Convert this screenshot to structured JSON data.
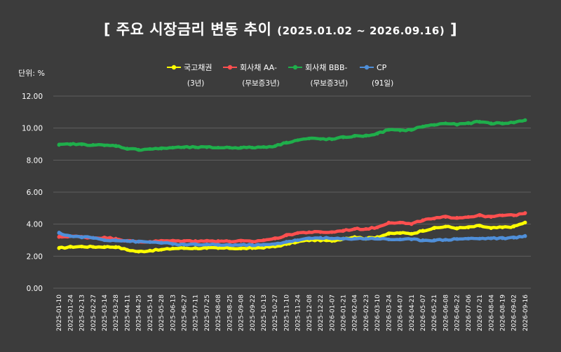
{
  "chart_data": {
    "type": "line",
    "title": "주요 시장금리 변동 추이",
    "title_range": "(2025.01.02 ~ 2026.09.16)",
    "title_open_bracket": "[",
    "title_close_bracket": "]",
    "ylabel": "단위: %",
    "ylim": [
      0,
      12
    ],
    "yticks": [
      "0.00",
      "2.00",
      "4.00",
      "6.00",
      "8.00",
      "10.00",
      "12.00"
    ],
    "grid": true,
    "legend_position": "top",
    "x_tick_labels": [
      "2025-01-10",
      "2025-01-24",
      "2025-02-13",
      "2025-02-27",
      "2025-03-14",
      "2025-03-28",
      "2025-04-11",
      "2025-04-25",
      "2025-05-14",
      "2025-05-28",
      "2025-06-13",
      "2025-06-27",
      "2025-07-11",
      "2025-07-25",
      "2025-08-08",
      "2025-08-25",
      "2025-09-08",
      "2025-09-22",
      "2025-10-13",
      "2025-10-27",
      "2025-11-10",
      "2025-11-24",
      "2025-12-08",
      "2025-12-22",
      "2026-01-07",
      "2026-01-21",
      "2026-02-04",
      "2026-02-23",
      "2026-03-10",
      "2026-03-24",
      "2026-04-07",
      "2026-04-21",
      "2026-05-07",
      "2026-05-21",
      "2026-06-08",
      "2026-06-22",
      "2026-07-06",
      "2026-07-21",
      "2026-08-04",
      "2026-08-19",
      "2026-09-02",
      "2026-09-16"
    ],
    "series": [
      {
        "name": "국고채권",
        "sub": "(3년)",
        "color": "#ffff00",
        "values": [
          2.5,
          2.58,
          2.6,
          2.58,
          2.58,
          2.58,
          2.4,
          2.28,
          2.35,
          2.4,
          2.48,
          2.5,
          2.5,
          2.5,
          2.5,
          2.5,
          2.48,
          2.5,
          2.55,
          2.6,
          2.75,
          2.9,
          3.0,
          3.0,
          2.95,
          3.1,
          3.2,
          3.1,
          3.2,
          3.4,
          3.45,
          3.4,
          3.6,
          3.75,
          3.85,
          3.75,
          3.8,
          3.9,
          3.75,
          3.8,
          3.85,
          4.1
        ]
      },
      {
        "name": "회사채 AA-",
        "sub": "(무보증3년)",
        "color": "#ff4f4f",
        "values": [
          3.2,
          3.25,
          3.2,
          3.15,
          3.15,
          3.1,
          2.95,
          2.9,
          2.9,
          2.95,
          2.95,
          2.95,
          2.95,
          2.95,
          2.95,
          2.92,
          2.95,
          2.9,
          3.0,
          3.1,
          3.3,
          3.45,
          3.5,
          3.5,
          3.5,
          3.6,
          3.7,
          3.7,
          3.8,
          4.1,
          4.1,
          4.0,
          4.25,
          4.35,
          4.45,
          4.4,
          4.45,
          4.55,
          4.45,
          4.55,
          4.55,
          4.7
        ]
      },
      {
        "name": "회사채 BBB-",
        "sub": "(무보증3년)",
        "color": "#1fae4b",
        "values": [
          8.95,
          9.0,
          8.98,
          8.95,
          8.92,
          8.9,
          8.72,
          8.65,
          8.7,
          8.72,
          8.78,
          8.8,
          8.8,
          8.8,
          8.78,
          8.78,
          8.78,
          8.78,
          8.82,
          8.88,
          9.1,
          9.25,
          9.35,
          9.32,
          9.3,
          9.42,
          9.5,
          9.52,
          9.65,
          9.9,
          9.85,
          9.9,
          10.1,
          10.2,
          10.3,
          10.22,
          10.3,
          10.4,
          10.3,
          10.3,
          10.35,
          10.5
        ]
      },
      {
        "name": "CP",
        "sub": "(91일)",
        "color": "#4f8fd9",
        "values": [
          3.45,
          3.25,
          3.2,
          3.15,
          3.0,
          3.0,
          2.95,
          2.9,
          2.88,
          2.85,
          2.75,
          2.72,
          2.72,
          2.72,
          2.7,
          2.7,
          2.7,
          2.7,
          2.7,
          2.75,
          2.9,
          3.0,
          3.1,
          3.15,
          3.1,
          3.08,
          3.1,
          3.1,
          3.1,
          3.05,
          3.05,
          3.05,
          3.0,
          3.0,
          3.02,
          3.08,
          3.1,
          3.1,
          3.12,
          3.12,
          3.15,
          3.25
        ]
      }
    ]
  }
}
